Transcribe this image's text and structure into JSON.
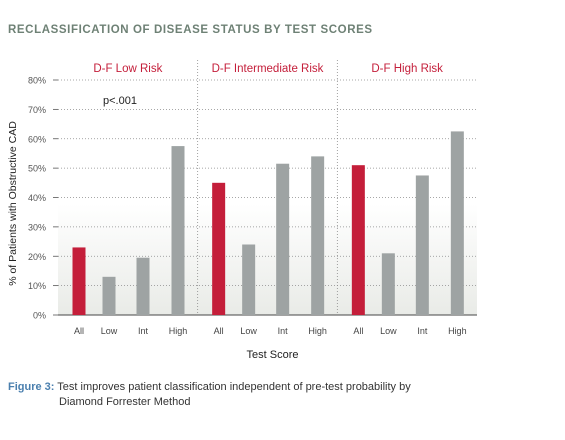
{
  "heading": "RECLASSIFICATION OF DISEASE STATUS BY TEST SCORES",
  "colors": {
    "highlight": "#c41e3a",
    "bar": "#9ea3a3",
    "heading": "#6e8175",
    "figure_label": "#4a7fae"
  },
  "chart_data": {
    "type": "bar",
    "ylabel": "% of Patients with Obstructive CAD",
    "xlabel": "Test Score",
    "ylim": [
      0,
      80
    ],
    "yticks": [
      "0%",
      "10%",
      "20%",
      "30%",
      "40%",
      "50%",
      "60%",
      "70%",
      "80%"
    ],
    "annotation": "p<.001",
    "grid": true,
    "groups": [
      {
        "name": "D-F Low Risk",
        "categories": [
          "All",
          "Low",
          "Int",
          "High"
        ],
        "values": [
          23,
          13,
          19.5,
          57.5
        ]
      },
      {
        "name": "D-F Intermediate Risk",
        "categories": [
          "All",
          "Low",
          "Int",
          "High"
        ],
        "values": [
          45,
          24,
          51.5,
          54
        ]
      },
      {
        "name": "D-F High Risk",
        "categories": [
          "All",
          "Low",
          "Int",
          "High"
        ],
        "values": [
          51,
          21,
          47.5,
          62.5
        ]
      }
    ]
  },
  "caption": {
    "label": "Figure 3:",
    "text_line1": " Test improves patient classification independent of pre-test probability by",
    "text_line2": "Diamond Forrester Method"
  }
}
